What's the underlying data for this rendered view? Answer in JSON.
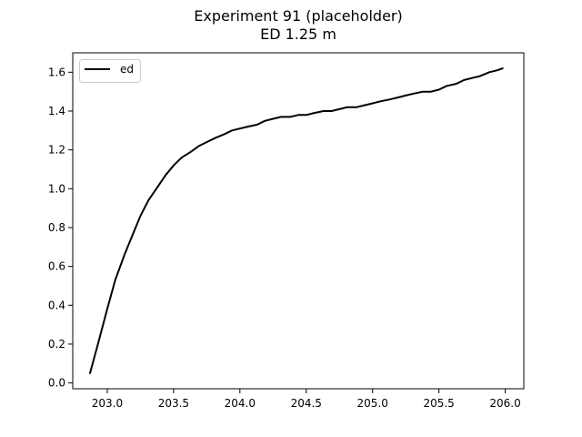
{
  "chart_data": {
    "type": "line",
    "title": "Experiment 91 (placeholder)",
    "subtitle": "ED 1.25 m",
    "xlabel": "",
    "ylabel": "",
    "xlim": [
      202.74,
      206.14
    ],
    "ylim": [
      -0.03,
      1.7
    ],
    "xticks": [
      203.0,
      203.5,
      204.0,
      204.5,
      205.0,
      205.5,
      206.0
    ],
    "xtick_labels": [
      "203.0",
      "203.5",
      "204.0",
      "204.5",
      "205.0",
      "205.5",
      "206.0"
    ],
    "yticks": [
      0.0,
      0.2,
      0.4,
      0.6,
      0.8,
      1.0,
      1.2,
      1.4,
      1.6
    ],
    "ytick_labels": [
      "0.0",
      "0.2",
      "0.4",
      "0.6",
      "0.8",
      "1.0",
      "1.2",
      "1.4",
      "1.6"
    ],
    "grid": false,
    "legend_position": "top-left",
    "series": [
      {
        "name": "ed",
        "color": "#000000",
        "x": [
          202.87,
          202.93,
          203.0,
          203.06,
          203.13,
          203.19,
          203.25,
          203.31,
          203.38,
          203.44,
          203.5,
          203.56,
          203.63,
          203.69,
          203.75,
          203.81,
          203.88,
          203.94,
          204.0,
          204.06,
          204.13,
          204.19,
          204.25,
          204.31,
          204.38,
          204.44,
          204.5,
          204.56,
          204.63,
          204.69,
          204.75,
          204.81,
          204.88,
          204.94,
          205.0,
          205.06,
          205.13,
          205.19,
          205.25,
          205.31,
          205.38,
          205.44,
          205.5,
          205.56,
          205.63,
          205.69,
          205.75,
          205.81,
          205.88,
          205.94,
          205.98
        ],
        "y": [
          0.05,
          0.2,
          0.38,
          0.53,
          0.66,
          0.76,
          0.86,
          0.94,
          1.01,
          1.07,
          1.12,
          1.16,
          1.19,
          1.22,
          1.24,
          1.26,
          1.28,
          1.3,
          1.31,
          1.32,
          1.33,
          1.35,
          1.36,
          1.37,
          1.37,
          1.38,
          1.38,
          1.39,
          1.4,
          1.4,
          1.41,
          1.42,
          1.42,
          1.43,
          1.44,
          1.45,
          1.46,
          1.47,
          1.48,
          1.49,
          1.5,
          1.5,
          1.51,
          1.53,
          1.54,
          1.56,
          1.57,
          1.58,
          1.6,
          1.61,
          1.62
        ]
      }
    ]
  }
}
